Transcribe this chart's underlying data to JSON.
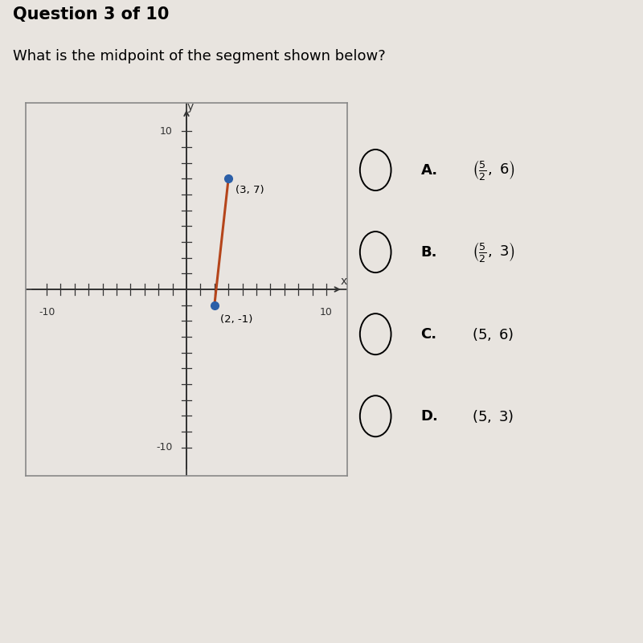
{
  "question_header": "Question 3 of 10",
  "question_text": "What is the midpoint of the segment shown below?",
  "point1": [
    3,
    7
  ],
  "point2": [
    2,
    -1
  ],
  "point1_label": "(3, 7)",
  "point2_label": "(2, -1)",
  "line_color": "#b5451b",
  "point_color": "#2c5fa8",
  "axis_range": [
    -10,
    10
  ],
  "choices_letters": [
    "A.",
    "B.",
    "C.",
    "D."
  ],
  "choices_texts": [
    "$\\left(\\frac{5}{2},\\ 6\\right)$",
    "$\\left(\\frac{5}{2},\\ 3\\right)$",
    "$(5,\\ 6)$",
    "$(5,\\ 3)$"
  ],
  "bg_color": "#e8e4df",
  "plot_bg_color": "#e8e4e0",
  "header_fontsize": 15,
  "question_fontsize": 13,
  "choice_fontsize": 13
}
